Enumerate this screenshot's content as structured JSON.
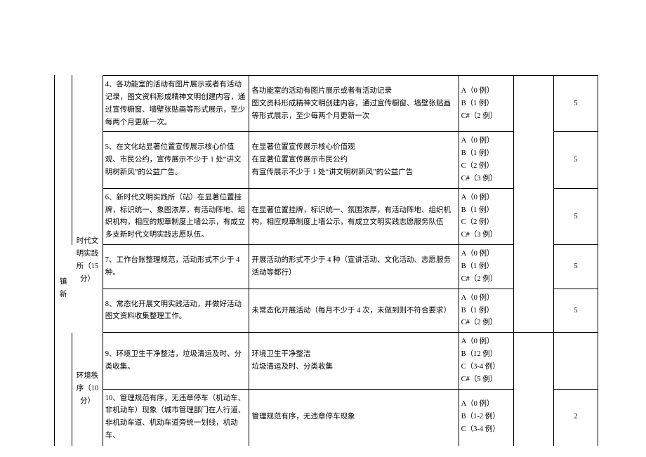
{
  "category_left": "镇新",
  "section1": {
    "label": "时代文明实践所（15分）",
    "rows": [
      {
        "c": "4、各功能室的活动有图片展示或者有活动记录，图文资料形成精神文明创建内容，通过宣传橱窗、墙壁张贴画等形式展示，至少每两个月更新一次。",
        "d": "各功能室的活动有图片展示或者有活动记录\n图文资料形成精神文明创建内容，通过宣传橱窗、墙壁张贴画等形式展示，至少每两个月更新一次",
        "e": "A（0 例）\nB（1 例）\nC#（2 例）",
        "g": "5"
      },
      {
        "c": "5、在文化站显著位置宣传展示核心价值观、市民公约，宣传展示不少于 1 处“讲文明树新风”的公益广告。",
        "d": "在显著位置宣传展示核心价值观\n在显著位置宣传展示市民公约\n有宣传展示不少于 1 处“讲文明树新风”的公益广告",
        "e": "A（0 例）\nB（1 例）\nC（2 例）\nC#（3 例）",
        "g": "5"
      },
      {
        "c": "6、新时代文明实践所（站）在显著位置挂牌，标识统一、象图浓厚，有活动阵地、组织机构，相应的规章制度上墙公示，有成立多支新时代文明实践志愿队伍。",
        "d": "在显著位置挂牌，标识统一、氛围浓厚，有活动阵地、组织机构，相应规章制度上墙公示，有成立文明实践志愿服务队伍",
        "e": "A（0 例）\nB（1 例）\nC（2 例）\nC#（3 例）",
        "g": "5"
      },
      {
        "c": "7、工作台账整理规范，活动形式不少于 4 种。",
        "d": "开展活动的形式不少于 4 种（宣讲活动、文化活动、志愿服务活动等都行）",
        "e": "A（0 例）\nB（1 例）\nC#（2 例）",
        "g": "5"
      },
      {
        "c": "8、常态化开展文明实践活动，并做好活动图文资料收集整理工作。",
        "d": "未常态化开展活动（每月不少于 4 次，未做到则不符合要求）",
        "e": "A（0 例）\nB（1 例）\nC#（2 例）",
        "g": "5"
      }
    ]
  },
  "section2": {
    "label": "环境秩序（10分）",
    "rows": [
      {
        "c": "9、环境卫生干净整洁，垃圾清运及时、分类收集。",
        "d": "环境卫生干净整洁\n垃圾清运及时、分类收集",
        "e": "A（0 例）\nB（12 例）\nC（3-4 例）\nC#（5 例）",
        "g": ""
      },
      {
        "c": "10、管理规范有序，无违章停车（机动车、非机动车）现象（城市管理部门在人行道、非机动车道、机动车道旁统一划线，机动车、",
        "d": "管理规范有序，无违章停车现象",
        "e": "A（0 例）\nB（1-2 例）\nC（3-4 例）",
        "g": "2"
      }
    ]
  }
}
